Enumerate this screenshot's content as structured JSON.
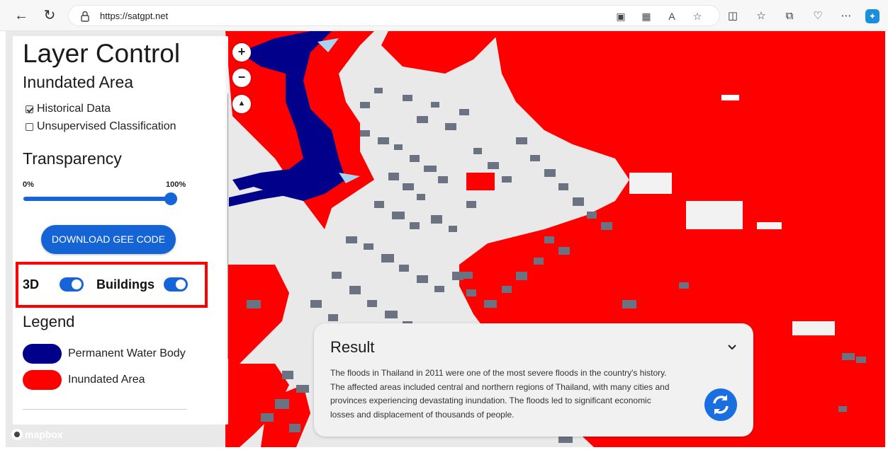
{
  "browser": {
    "url": "https://satgpt.net"
  },
  "panel": {
    "title": "Layer Control",
    "subtitle": "Inundated Area",
    "checkboxes": [
      {
        "label": "Historical Data",
        "checked": true
      },
      {
        "label": "Unsupervised Classification",
        "checked": false
      }
    ],
    "transparency_title": "Transparency",
    "transparency_min": "0%",
    "transparency_max": "100%",
    "transparency_value": 1.0,
    "download_button": "DOWNLOAD GEE CODE",
    "toggle_3d_label": "3D",
    "toggle_3d_on": true,
    "toggle_buildings_label": "Buildings",
    "toggle_buildings_on": true,
    "legend_title": "Legend",
    "legend": [
      {
        "label": "Permanent Water Body",
        "color": "#00008b"
      },
      {
        "label": "Inundated Area",
        "color": "#ff0000"
      }
    ]
  },
  "map": {
    "attribution": "mapbox",
    "controls": [
      "zoom-in",
      "zoom-out",
      "compass"
    ],
    "colors": {
      "inundated": "#ff0000",
      "water": "#00008b",
      "land": "#e9e9e9",
      "buildings": "#6b7383"
    }
  },
  "result": {
    "title": "Result",
    "lines": [
      "The floods in Thailand in 2011 were one of the most severe floods in the country's history.",
      "The affected areas included central and northern regions of Thailand, with many cities and",
      "provinces experiencing devastating inundation. The floods led to significant economic",
      "losses and displacement of thousands of people."
    ]
  }
}
